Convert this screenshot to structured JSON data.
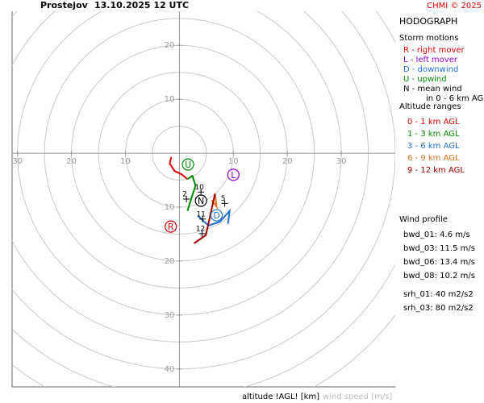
{
  "chart_data": {
    "type": "hodograph",
    "title": "Prostejov",
    "subtitle": "13.10.2025 12 UTC",
    "credit": "CHMI © 2025",
    "xlabel": "altitude !AGL! [km]",
    "xlabel2": "wind speed [m/s]",
    "xlim": [
      -31,
      40
    ],
    "ylim": [
      -43.3,
      26.3
    ],
    "xticks": [
      {
        "value": -30,
        "label": "30"
      },
      {
        "value": -20,
        "label": "20"
      },
      {
        "value": -10,
        "label": "10"
      },
      10,
      20,
      30
    ],
    "yticks": [
      20,
      10,
      {
        "value": -10,
        "label": "10"
      },
      {
        "value": -20,
        "label": "20"
      },
      {
        "value": -30,
        "label": "30"
      },
      {
        "value": -40,
        "label": "40"
      }
    ],
    "rings": [
      5,
      10,
      15,
      20,
      25,
      30,
      35,
      40,
      45,
      50
    ],
    "panel_title": "HODOGRAPH",
    "storm_heading": "Storm motions",
    "storm_legend": [
      {
        "text": "R - right mover",
        "color": "#e00000"
      },
      {
        "text": "L - left mover",
        "color": "#9900cc"
      },
      {
        "text": "D - downwind",
        "color": "#1f6fd0"
      },
      {
        "text": "U - upwind",
        "color": "#008800"
      },
      {
        "text": "N - mean wind",
        "color": "#000000"
      }
    ],
    "storm_note": "in 0 - 6 km AGL",
    "storm_motions": [
      {
        "symbol": "R",
        "u": -1.6,
        "v": -13.6,
        "color": "#e00000"
      },
      {
        "symbol": "L",
        "u": 10.0,
        "v": -4.0,
        "color": "#9900cc"
      },
      {
        "symbol": "D",
        "u": 6.9,
        "v": -11.5,
        "color": "#1f6fd0"
      },
      {
        "symbol": "U",
        "u": 1.6,
        "v": -2.1,
        "color": "#008800"
      },
      {
        "symbol": "N",
        "u": 4.0,
        "v": -8.8,
        "color": "#000000"
      }
    ],
    "altitude_heading": "Altitude ranges",
    "series": [
      {
        "name": "0 - 1 km AGL",
        "color": "#e00000",
        "u": [
          -1.5,
          -1.8,
          -0.9,
          0.4,
          1.5
        ],
        "v": [
          -0.7,
          -1.9,
          -3.3,
          -3.9,
          -4.8
        ]
      },
      {
        "name": "1 - 3 km AGL",
        "color": "#008800",
        "u": [
          1.5,
          2.4,
          3.0,
          2.1,
          1.5
        ],
        "v": [
          -4.8,
          -4.2,
          -6.0,
          -8.7,
          -10.7
        ]
      },
      {
        "name": "3 - 6 km AGL",
        "color": "#1f6fd0",
        "u": [
          3.4,
          5.4,
          7.5,
          9.3,
          9.0
        ],
        "v": [
          -11.6,
          -13.4,
          -12.7,
          -10.7,
          -13.1
        ]
      },
      {
        "name": "6 - 9 km AGL",
        "color": "#e07020",
        "u": [
          6.0,
          6.9,
          6.6
        ],
        "v": [
          -8.7,
          -9.9,
          -7.5
        ]
      },
      {
        "name": "9 - 12 km AGL",
        "color": "#a00000",
        "u": [
          6.6,
          4.9,
          2.7
        ],
        "v": [
          -7.5,
          -15.2,
          -16.7
        ]
      }
    ],
    "height_labels": [
      {
        "label": "2",
        "u": 1.3,
        "v": -8.5
      },
      {
        "label": "5",
        "u": 8.4,
        "v": -9.3
      },
      {
        "label": "10",
        "u": 4.0,
        "v": -7.2
      },
      {
        "label": "11",
        "u": 4.3,
        "v": -12.2
      },
      {
        "label": "12",
        "u": 4.2,
        "v": -14.9
      }
    ],
    "profile_heading": "Wind profile",
    "profile": [
      "bwd_01: 4.6 m/s",
      "bwd_03: 11.5 m/s",
      "bwd_06: 13.4 m/s",
      "bwd_08: 10.2 m/s",
      "srh_01: 40 m2/s2",
      "srh_03: 80 m2/s2"
    ]
  }
}
